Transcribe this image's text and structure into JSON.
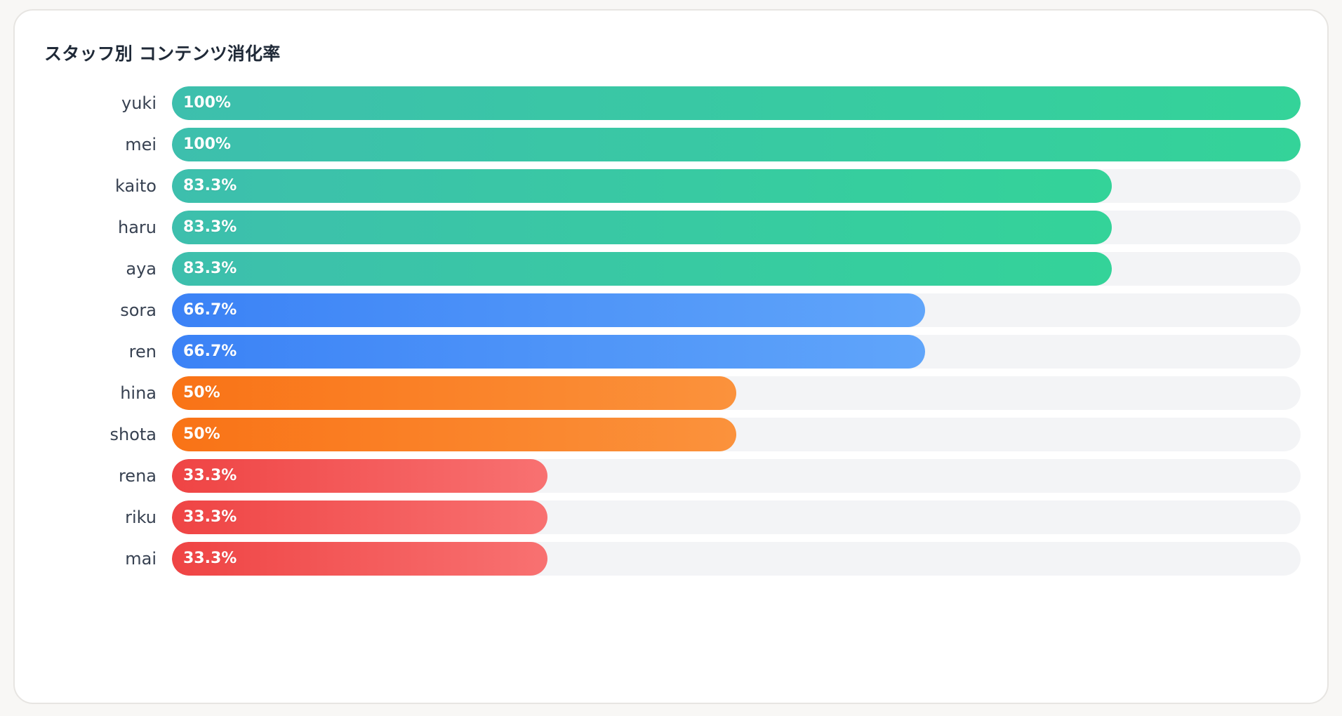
{
  "chart_data": {
    "type": "bar",
    "title": "スタッフ別 コンテンツ消化率",
    "orientation": "horizontal",
    "xlabel": "",
    "ylabel": "",
    "xlim": [
      0,
      100
    ],
    "categories": [
      "yuki",
      "mei",
      "kaito",
      "haru",
      "aya",
      "sora",
      "ren",
      "hina",
      "shota",
      "rena",
      "riku",
      "mai"
    ],
    "values": [
      100,
      100,
      83.3,
      83.3,
      83.3,
      66.7,
      66.7,
      50,
      50,
      33.3,
      33.3,
      33.3
    ],
    "value_labels": [
      "100%",
      "100%",
      "83.3%",
      "83.3%",
      "83.3%",
      "66.7%",
      "66.7%",
      "50%",
      "50%",
      "33.3%",
      "33.3%",
      "33.3%"
    ]
  },
  "colors": {
    "green_start": "#3dbfad",
    "green_end": "#34d399",
    "blue_start": "#3b82f6",
    "blue_end": "#60a5fa",
    "orange_start": "#f97316",
    "orange_end": "#fb923c",
    "red_start": "#ef4444",
    "red_end": "#f87171",
    "track": "#f3f4f6"
  }
}
